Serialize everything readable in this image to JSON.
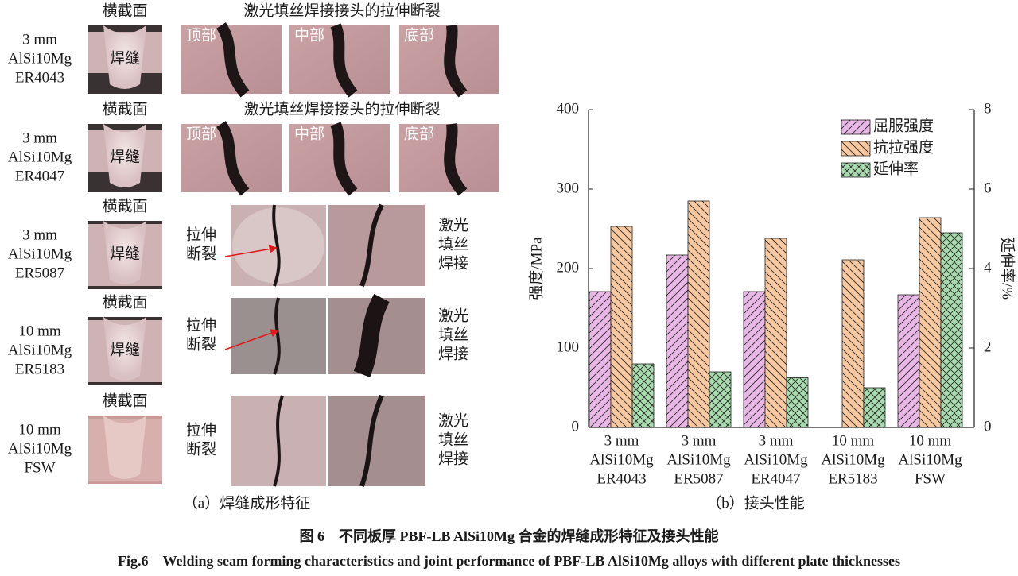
{
  "panel_a": {
    "caption": "（a）焊缝成形特征",
    "rows": [
      {
        "specimen": [
          "3 mm",
          "AlSi10Mg",
          "ER4043"
        ],
        "section_title": "横截面",
        "weld": "焊缝",
        "fracture_title": "激光填丝焊接接头的拉伸断裂",
        "positions": [
          "顶部",
          "中部",
          "底部"
        ]
      },
      {
        "specimen": [
          "3 mm",
          "AlSi10Mg",
          "ER4047"
        ],
        "section_title": "横截面",
        "weld": "焊缝",
        "fracture_title": "激光填丝焊接接头的拉伸断裂",
        "positions": [
          "顶部",
          "中部",
          "底部"
        ]
      },
      {
        "specimen": [
          "3 mm",
          "AlSi10Mg",
          "ER5087"
        ],
        "section_title": "横截面",
        "weld": "焊缝",
        "fracture_label": [
          "拉伸",
          "断裂"
        ],
        "process": [
          "激光",
          "填丝",
          "焊接"
        ]
      },
      {
        "specimen": [
          "10 mm",
          "AlSi10Mg",
          "ER5183"
        ],
        "section_title": "横截面",
        "weld": "焊缝",
        "fracture_label": [
          "拉伸",
          "断裂"
        ],
        "process": [
          "激光",
          "填丝",
          "焊接"
        ]
      },
      {
        "specimen": [
          "10 mm",
          "AlSi10Mg",
          "FSW"
        ],
        "section_title": "横截面",
        "fracture_label": [
          "拉伸",
          "断裂"
        ],
        "process": [
          "激光",
          "填丝",
          "焊接"
        ]
      }
    ]
  },
  "chart_data": {
    "type": "bar",
    "caption": "（b）接头性能",
    "categories": [
      [
        "3 mm",
        "AlSi10Mg",
        "ER4043"
      ],
      [
        "3 mm",
        "AlSi10Mg",
        "ER5087"
      ],
      [
        "3 mm",
        "AlSi10Mg",
        "ER4047"
      ],
      [
        "10 mm",
        "AlSi10Mg",
        "ER5183"
      ],
      [
        "10 mm",
        "AlSi10Mg",
        "FSW"
      ]
    ],
    "y_label": "强度/MPa",
    "y2_label": "延伸率/%",
    "ylim": [
      0,
      400
    ],
    "yticks": [
      0,
      100,
      200,
      300,
      400
    ],
    "y2lim": [
      0,
      8
    ],
    "y2ticks": [
      0,
      2,
      4,
      6,
      8
    ],
    "legend_position": "upper-right",
    "series": [
      {
        "name": "屈服强度",
        "color": "#e9b7e6",
        "hatch": "/",
        "values": [
          171,
          217,
          171,
          null,
          167
        ]
      },
      {
        "name": "抗拉强度",
        "color": "#f8c9a0",
        "hatch": "\\",
        "values": [
          253,
          285,
          238,
          211,
          264
        ]
      },
      {
        "name": "延伸率",
        "color": "#a8dcae",
        "hatch": "x",
        "axis": "y2",
        "values": [
          1.6,
          1.4,
          1.25,
          1.0,
          4.9
        ]
      }
    ]
  },
  "figure": {
    "caption_cn": "图 6　不同板厚 PBF-LB AlSi10Mg 合金的焊缝成形特征及接头性能",
    "caption_en": "Fig.6　Welding seam forming characteristics and joint performance of PBF-LB AlSi10Mg alloys with different plate thicknesses"
  }
}
